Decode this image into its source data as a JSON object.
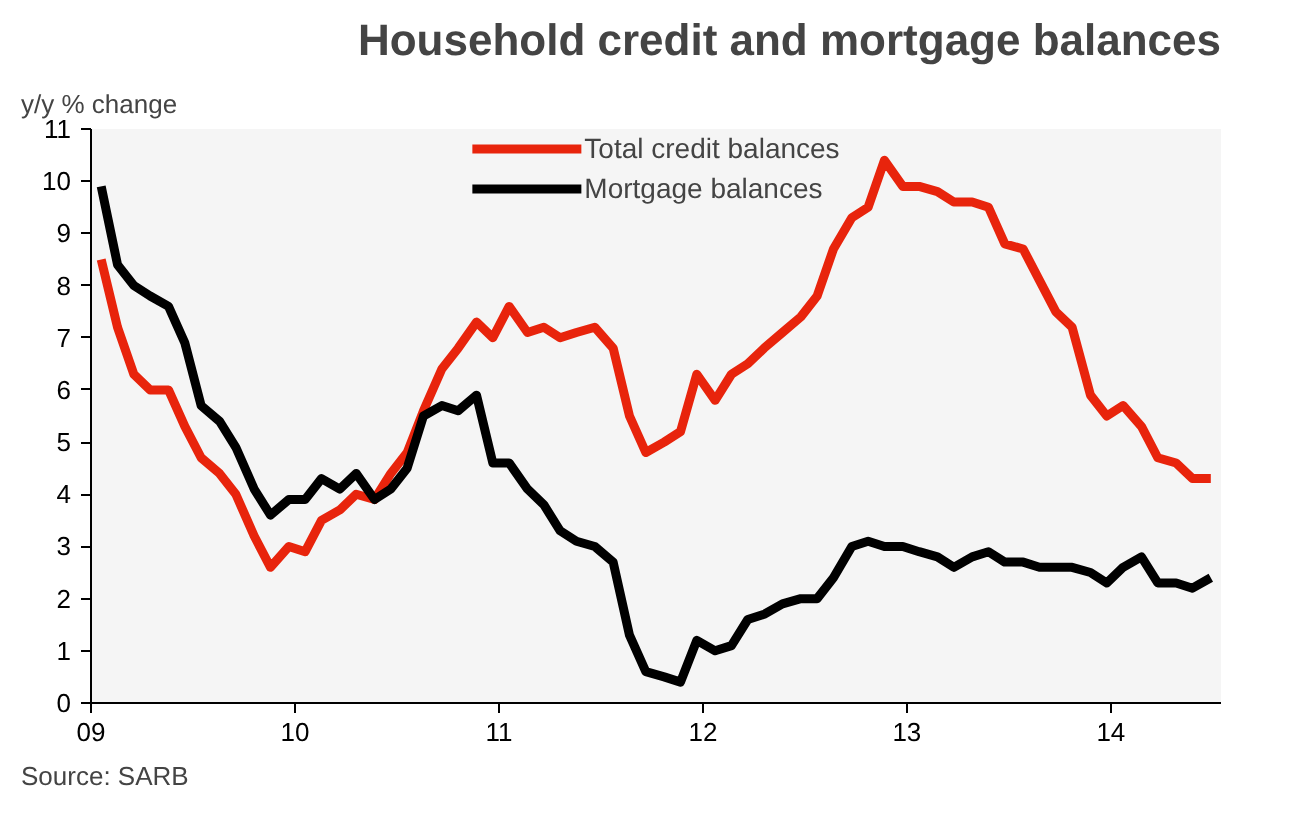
{
  "chart_data": {
    "type": "line",
    "title": "Household credit and mortgage balances",
    "ylabel": "y/y % change",
    "annotations": [
      "Source: SARB"
    ],
    "x": [
      2009.05,
      2009.13,
      2009.21,
      2009.29,
      2009.38,
      2009.46,
      2009.54,
      2009.63,
      2009.71,
      2009.8,
      2009.88,
      2009.97,
      2010.05,
      2010.13,
      2010.22,
      2010.3,
      2010.39,
      2010.47,
      2010.55,
      2010.63,
      2010.72,
      2010.8,
      2010.89,
      2010.97,
      2011.05,
      2011.14,
      2011.22,
      2011.3,
      2011.38,
      2011.47,
      2011.56,
      2011.64,
      2011.72,
      2011.81,
      2011.89,
      2011.97,
      2012.06,
      2012.14,
      2012.22,
      2012.3,
      2012.39,
      2012.48,
      2012.56,
      2012.64,
      2012.73,
      2012.81,
      2012.89,
      2012.98,
      2013.06,
      2013.15,
      2013.23,
      2013.32,
      2013.4,
      2013.48,
      2013.57,
      2013.65,
      2013.73,
      2013.81,
      2013.9,
      2013.98,
      2014.06,
      2014.15,
      2014.23,
      2014.32,
      2014.4,
      2014.49
    ],
    "series": [
      {
        "name": "Total credit balances",
        "color": "#e8240c",
        "values": [
          8.5,
          7.2,
          6.3,
          6.0,
          6.0,
          5.3,
          4.7,
          4.4,
          4.0,
          3.2,
          2.6,
          3.0,
          2.9,
          3.5,
          3.7,
          4.0,
          3.9,
          4.4,
          4.8,
          5.6,
          6.4,
          6.8,
          7.3,
          7.0,
          7.6,
          7.1,
          7.2,
          7.0,
          7.1,
          7.2,
          6.8,
          5.5,
          4.8,
          5.0,
          5.2,
          6.3,
          5.8,
          6.3,
          6.5,
          6.8,
          7.1,
          7.4,
          7.8,
          8.7,
          9.3,
          9.5,
          10.4,
          9.9,
          9.9,
          9.8,
          9.6,
          9.6,
          9.5,
          8.8,
          8.7,
          8.1,
          7.5,
          7.2,
          5.9,
          5.5,
          5.7,
          5.3,
          4.7,
          4.6,
          4.3,
          4.3
        ]
      },
      {
        "name": "Mortgage balances",
        "color": "#000000",
        "values": [
          9.9,
          8.4,
          8.0,
          7.8,
          7.6,
          6.9,
          5.7,
          5.4,
          4.9,
          4.1,
          3.6,
          3.9,
          3.9,
          4.3,
          4.1,
          4.4,
          3.9,
          4.1,
          4.5,
          5.5,
          5.7,
          5.6,
          5.9,
          4.6,
          4.6,
          4.1,
          3.8,
          3.3,
          3.1,
          3.0,
          2.7,
          1.3,
          0.6,
          0.5,
          0.4,
          1.2,
          1.0,
          1.1,
          1.6,
          1.7,
          1.9,
          2.0,
          2.0,
          2.4,
          3.0,
          3.1,
          3.0,
          3.0,
          2.9,
          2.8,
          2.6,
          2.8,
          2.9,
          2.7,
          2.7,
          2.6,
          2.6,
          2.6,
          2.5,
          2.3,
          2.6,
          2.8,
          2.3,
          2.3,
          2.2,
          2.4
        ]
      }
    ],
    "xlim": [
      2009,
      2014.54
    ],
    "ylim": [
      0,
      11
    ],
    "xticks": [
      {
        "value": 2009,
        "label": "09"
      },
      {
        "value": 2010,
        "label": "10"
      },
      {
        "value": 2011,
        "label": "11"
      },
      {
        "value": 2012,
        "label": "12"
      },
      {
        "value": 2013,
        "label": "13"
      },
      {
        "value": 2014,
        "label": "14"
      }
    ],
    "yticks": [
      0,
      1,
      2,
      3,
      4,
      5,
      6,
      7,
      8,
      9,
      10,
      11
    ],
    "grid": false,
    "legend": "top",
    "marker": "none",
    "line_style": "solid"
  }
}
